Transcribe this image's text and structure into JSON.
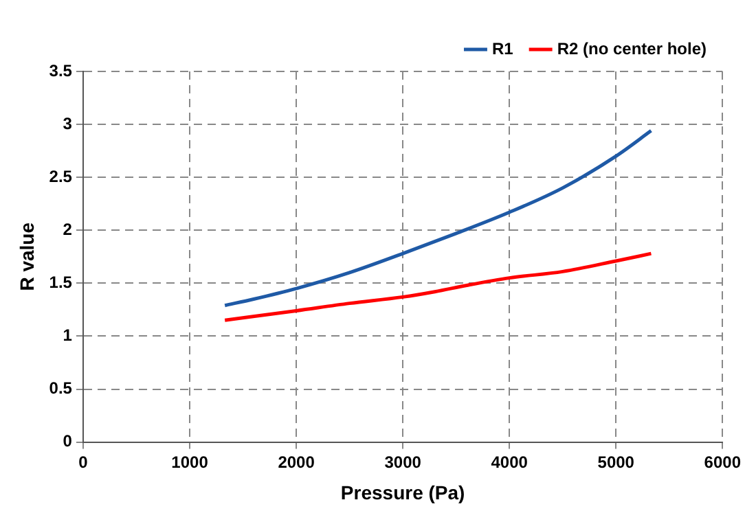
{
  "chart_data": {
    "type": "line",
    "xlabel": "Pressure (Pa)",
    "ylabel": "R value",
    "xlim": [
      0,
      6000
    ],
    "xticks": [
      0,
      1000,
      2000,
      3000,
      4000,
      5000,
      6000
    ],
    "ylim": [
      0,
      3.5
    ],
    "yticks": [
      0,
      0.5,
      1,
      1.5,
      2,
      2.5,
      3,
      3.5
    ],
    "grid": true,
    "legend": "top right",
    "marker": "none",
    "line_style": "solid",
    "series": [
      {
        "name": "R1",
        "color": "#1f5aa6",
        "x": [
          1330,
          1600,
          2000,
          2500,
          3000,
          3500,
          4000,
          4500,
          5000,
          5330
        ],
        "values": [
          1.29,
          1.35,
          1.45,
          1.6,
          1.78,
          1.97,
          2.17,
          2.4,
          2.7,
          2.94
        ]
      },
      {
        "name": "R2 (no center hole)",
        "color": "#ff0000",
        "x": [
          1330,
          2000,
          2500,
          3000,
          3300,
          3600,
          4000,
          4500,
          5000,
          5330
        ],
        "values": [
          1.15,
          1.24,
          1.31,
          1.37,
          1.42,
          1.48,
          1.55,
          1.61,
          1.71,
          1.78
        ]
      }
    ]
  }
}
